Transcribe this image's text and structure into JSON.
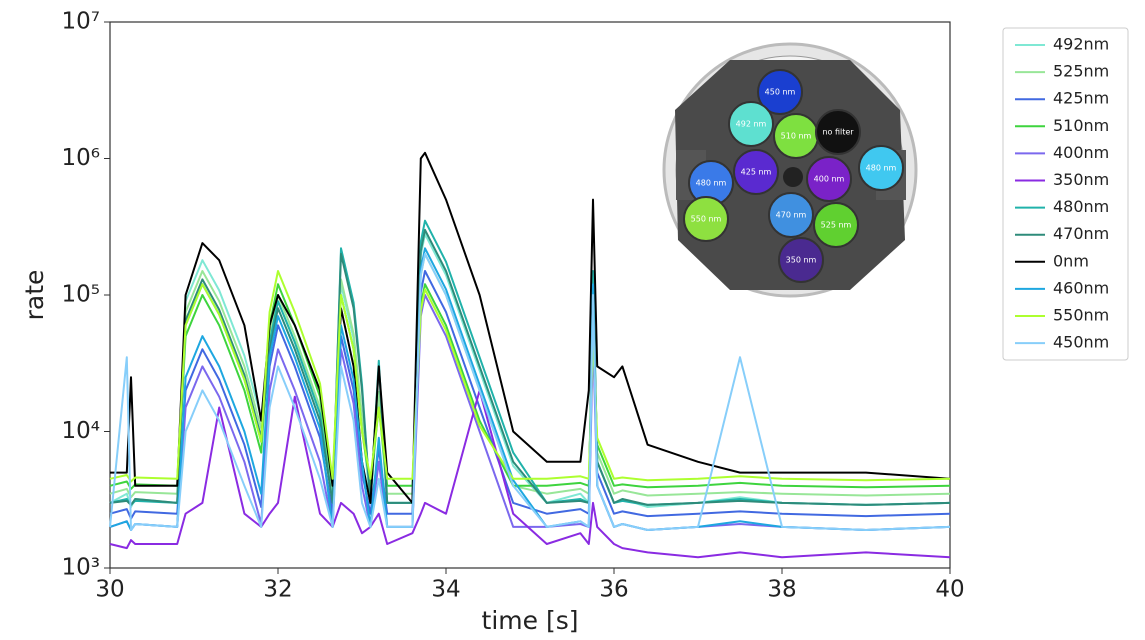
{
  "chart_data": {
    "type": "line",
    "xlabel": "time [s]",
    "ylabel": "rate",
    "x": [
      30,
      30.2,
      30.25,
      30.3,
      30.8,
      30.9,
      31.1,
      31.3,
      31.6,
      31.8,
      31.9,
      32.0,
      32.2,
      32.5,
      32.65,
      32.75,
      32.9,
      33.0,
      33.1,
      33.2,
      33.3,
      33.6,
      33.7,
      33.75,
      34.0,
      34.4,
      34.8,
      35.2,
      35.6,
      35.7,
      35.75,
      35.8,
      36.0,
      36.1,
      36.4,
      37.0,
      37.5,
      38.0,
      39.0,
      40
    ],
    "xlim": [
      30,
      40
    ],
    "xticks": [
      30,
      32,
      34,
      36,
      38,
      40
    ],
    "ylim": [
      1000,
      10000000
    ],
    "log_y": true,
    "yticks": [
      {
        "value": 1000,
        "label": "10³"
      },
      {
        "value": 10000,
        "label": "10⁴"
      },
      {
        "value": 100000,
        "label": "10⁵"
      },
      {
        "value": 1000000,
        "label": "10⁶"
      },
      {
        "value": 10000000,
        "label": "10⁷"
      }
    ],
    "legend": "outside-right",
    "series": [
      {
        "name": "492nm",
        "color": "#7fe8d4",
        "values": [
          3000,
          3500,
          2800,
          3200,
          3000,
          90000,
          180000,
          108000,
          36000,
          12600,
          45000,
          90000,
          45000,
          13500,
          3000,
          120000,
          48000,
          12000,
          3000,
          18000,
          3000,
          3000,
          196000,
          280000,
          140000,
          28000,
          5600,
          3000,
          3500,
          3000,
          100000,
          6000,
          3000,
          3200,
          2800,
          3000,
          3300,
          3000,
          2900,
          3000
        ]
      },
      {
        "name": "525nm",
        "color": "#98e698",
        "values": [
          3500,
          3800,
          3300,
          3600,
          3500,
          75000,
          150000,
          90000,
          30000,
          10500,
          50000,
          100000,
          50000,
          15000,
          3500,
          130000,
          52000,
          13000,
          3500,
          19500,
          3500,
          3500,
          140000,
          200000,
          100000,
          20000,
          4000,
          3500,
          3800,
          3500,
          80000,
          7000,
          3500,
          3700,
          3400,
          3500,
          3600,
          3500,
          3400,
          3500
        ]
      },
      {
        "name": "425nm",
        "color": "#4169e1",
        "values": [
          2500,
          2700,
          2300,
          2600,
          2500,
          20000,
          40000,
          24000,
          8000,
          2800,
          30000,
          60000,
          30000,
          9000,
          2500,
          50000,
          20000,
          5000,
          2500,
          7500,
          2500,
          2500,
          105000,
          150000,
          75000,
          15000,
          3000,
          2500,
          2700,
          2500,
          60000,
          5000,
          2500,
          2600,
          2400,
          2500,
          2600,
          2500,
          2400,
          2500
        ]
      },
      {
        "name": "510nm",
        "color": "#3ed43e",
        "values": [
          4000,
          4300,
          3800,
          4100,
          4000,
          50000,
          100000,
          60000,
          20000,
          7000,
          60000,
          120000,
          60000,
          18000,
          4000,
          100000,
          40000,
          10000,
          4000,
          15000,
          4000,
          4000,
          84000,
          120000,
          60000,
          12000,
          4000,
          4000,
          4200,
          4000,
          60000,
          8000,
          4000,
          4100,
          3900,
          4000,
          4200,
          4000,
          3900,
          4000
        ]
      },
      {
        "name": "400nm",
        "color": "#7b68ee",
        "values": [
          2000,
          2200,
          1900,
          2100,
          2000,
          15000,
          30000,
          18000,
          6000,
          2100,
          20000,
          40000,
          20000,
          6000,
          2000,
          40000,
          16000,
          4000,
          2000,
          6000,
          2000,
          2000,
          70000,
          100000,
          50000,
          10000,
          2000,
          2000,
          2100,
          2000,
          50000,
          4000,
          2000,
          2100,
          1900,
          2000,
          2100,
          2000,
          1900,
          2000
        ]
      },
      {
        "name": "350nm",
        "color": "#8a2be2",
        "values": [
          1500,
          1400,
          1600,
          1500,
          1500,
          2500,
          3000,
          15000,
          2500,
          2000,
          2500,
          3000,
          18000,
          2500,
          2000,
          3000,
          2500,
          1800,
          2000,
          2500,
          1500,
          1800,
          2500,
          3000,
          2500,
          20000,
          2500,
          1500,
          1800,
          1500,
          3000,
          2000,
          1500,
          1400,
          1300,
          1200,
          1300,
          1200,
          1300,
          1200
        ]
      },
      {
        "name": "480nm",
        "color": "#20b2aa",
        "values": [
          3000,
          3200,
          2900,
          3100,
          3000,
          60000,
          120000,
          72000,
          24000,
          8400,
          45000,
          90000,
          45000,
          13500,
          3000,
          220000,
          88000,
          22000,
          3000,
          33000,
          3000,
          3000,
          245000,
          350000,
          175000,
          35000,
          7000,
          3000,
          3200,
          3000,
          150000,
          6000,
          3000,
          3100,
          2900,
          3000,
          3200,
          3000,
          2900,
          3000
        ]
      },
      {
        "name": "470nm",
        "color": "#2e8b7a",
        "values": [
          3000,
          3100,
          2900,
          3200,
          3000,
          65000,
          130000,
          78000,
          26000,
          9100,
          40000,
          80000,
          40000,
          12000,
          3000,
          200000,
          80000,
          20000,
          3000,
          30000,
          3000,
          3000,
          210000,
          300000,
          150000,
          30000,
          6000,
          3000,
          3100,
          3000,
          120000,
          6000,
          3000,
          3200,
          2900,
          3000,
          3100,
          3000,
          2900,
          3000
        ]
      },
      {
        "name": "0nm",
        "color": "#000000",
        "values": [
          5000,
          5000,
          25000,
          4000,
          4000,
          100000,
          240000,
          180000,
          60000,
          12000,
          60000,
          100000,
          60000,
          20000,
          4000,
          80000,
          30000,
          6000,
          3000,
          30000,
          5000,
          3000,
          1000000,
          1100000,
          500000,
          100000,
          10000,
          6000,
          6000,
          20000,
          500000,
          30000,
          25000,
          30000,
          8000,
          6000,
          5000,
          5000,
          5000,
          4500
        ]
      },
      {
        "name": "460nm",
        "color": "#1ea7e0",
        "values": [
          2000,
          2200,
          1900,
          2100,
          2000,
          25000,
          50000,
          30000,
          10000,
          3500,
          35000,
          70000,
          35000,
          10500,
          2000,
          60000,
          24000,
          6000,
          2000,
          9000,
          2000,
          2000,
          154000,
          220000,
          110000,
          22000,
          4400,
          2000,
          2200,
          2000,
          120000,
          4000,
          2000,
          2100,
          1900,
          2000,
          2200,
          2000,
          1900,
          2000
        ]
      },
      {
        "name": "550nm",
        "color": "#adff2f",
        "values": [
          4500,
          4800,
          4300,
          4600,
          4500,
          60000,
          120000,
          72000,
          24000,
          8400,
          75000,
          150000,
          75000,
          22500,
          4500,
          100000,
          40000,
          10000,
          4500,
          15000,
          4500,
          4500,
          77000,
          110000,
          55000,
          11000,
          4500,
          4500,
          4700,
          4500,
          50000,
          9000,
          4500,
          4600,
          4400,
          4500,
          4700,
          4500,
          4400,
          4500
        ]
      },
      {
        "name": "450nm",
        "color": "#87cefa",
        "values": [
          2000,
          35000,
          1900,
          2100,
          2000,
          10000,
          20000,
          12000,
          4000,
          2000,
          15000,
          30000,
          15000,
          4500,
          2000,
          30000,
          12000,
          3000,
          2000,
          4500,
          2000,
          2000,
          140000,
          200000,
          100000,
          20000,
          4000,
          2000,
          2200,
          2000,
          100000,
          4000,
          2000,
          2100,
          1900,
          2000,
          35000,
          2000,
          1900,
          2000
        ]
      }
    ]
  },
  "inset": {
    "filters": [
      {
        "label": "450 nm",
        "color": "#1a3fd0"
      },
      {
        "label": "492 nm",
        "color": "#5ee0d0"
      },
      {
        "label": "510 nm",
        "color": "#7ee040"
      },
      {
        "label": "no filter",
        "color": "#111111"
      },
      {
        "label": "425 nm",
        "color": "#5a2ad0"
      },
      {
        "label": "400 nm",
        "color": "#7a22c8"
      },
      {
        "label": "480 nm",
        "color": "#3a7ae8"
      },
      {
        "label": "480 nm",
        "color": "#40c8f0"
      },
      {
        "label": "550 nm",
        "color": "#8ee040"
      },
      {
        "label": "470 nm",
        "color": "#4090e0"
      },
      {
        "label": "525 nm",
        "color": "#60d030"
      },
      {
        "label": "350 nm",
        "color": "#4a2a90"
      }
    ]
  }
}
